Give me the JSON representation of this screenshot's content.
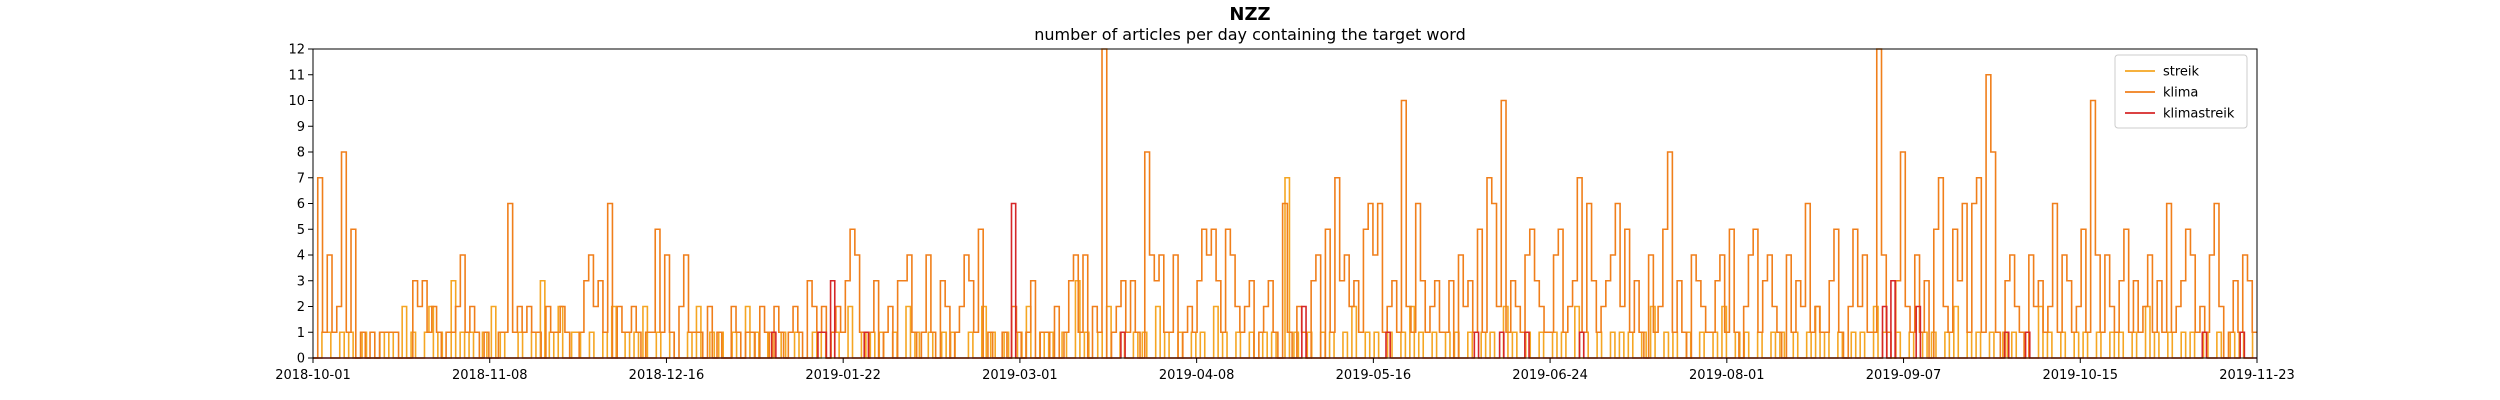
{
  "chart_data": {
    "type": "line",
    "title": "NZZ",
    "subtitle": "number of articles per day containing the target word",
    "xlabel": "",
    "ylabel": "",
    "x_range": [
      "2018-10-01",
      "2019-11-23"
    ],
    "ylim": [
      0,
      12
    ],
    "x_tick_labels": [
      "2018-10-01",
      "2018-11-08",
      "2018-12-16",
      "2019-01-22",
      "2019-03-01",
      "2019-04-08",
      "2019-05-16",
      "2019-06-24",
      "2019-08-01",
      "2019-09-07",
      "2019-10-15",
      "2019-11-23"
    ],
    "y_ticks": [
      "0",
      "1",
      "2",
      "3",
      "4",
      "5",
      "6",
      "7",
      "8",
      "9",
      "10",
      "11",
      "12"
    ],
    "grid": false,
    "legend_position": "top-right",
    "series": [
      {
        "name": "streik",
        "color": "#f5a623",
        "values": [
          0,
          0,
          1,
          1,
          0,
          0,
          1,
          0,
          1,
          0,
          0,
          1,
          0,
          0,
          0,
          1,
          0,
          1,
          0,
          0,
          2,
          0,
          1,
          0,
          0,
          1,
          2,
          0,
          1,
          0,
          0,
          3,
          0,
          1,
          0,
          1,
          0,
          0,
          1,
          0,
          2,
          0,
          1,
          0,
          0,
          0,
          1,
          0,
          0,
          1,
          0,
          3,
          0,
          1,
          0,
          2,
          0,
          0,
          1,
          1,
          0,
          0,
          1,
          0,
          0,
          1,
          0,
          2,
          0,
          0,
          1,
          0,
          1,
          0,
          2,
          0,
          0,
          1,
          0,
          0,
          1,
          0,
          0,
          0,
          1,
          0,
          2,
          0,
          0,
          1,
          0,
          1,
          0,
          0,
          1,
          0,
          0,
          2,
          0,
          1,
          0,
          0,
          1,
          0,
          0,
          1,
          0,
          0,
          1,
          0,
          0,
          0,
          1,
          0,
          1,
          0,
          0,
          1,
          0,
          0,
          2,
          0,
          0,
          1,
          0,
          1,
          0,
          1,
          0,
          0,
          1,
          0,
          0,
          2,
          0,
          1,
          0,
          0,
          1,
          0,
          0,
          1,
          0,
          1,
          0,
          0,
          0,
          1,
          0,
          0,
          2,
          0,
          1,
          0,
          0,
          1,
          0,
          0,
          1,
          0,
          2,
          0,
          0,
          1,
          0,
          1,
          0,
          0,
          1,
          0,
          0,
          3,
          0,
          1,
          0,
          0,
          1,
          0,
          2,
          0,
          0,
          1,
          0,
          0,
          1,
          0,
          1,
          0,
          0,
          2,
          0,
          1,
          0,
          0,
          1,
          0,
          0,
          1,
          0,
          1,
          0,
          0,
          2,
          0,
          1,
          0,
          0,
          1,
          0,
          0,
          1,
          0,
          0,
          1,
          0,
          1,
          0,
          0,
          7,
          0,
          1,
          0,
          0,
          1,
          0,
          0,
          1,
          0,
          1,
          0,
          0,
          1,
          0,
          2,
          0,
          0,
          1,
          0,
          1,
          0,
          0,
          1,
          0,
          0,
          1,
          0,
          2,
          0,
          1,
          0,
          0,
          1,
          0,
          0,
          1,
          0,
          1,
          0,
          0,
          1,
          0,
          0,
          1,
          0,
          1,
          0,
          0,
          2,
          0,
          1,
          0,
          0,
          1,
          0,
          0,
          1,
          0,
          0,
          1,
          0,
          1,
          0,
          0,
          2,
          0,
          1,
          0,
          0,
          1,
          0,
          0,
          1,
          0,
          1,
          0,
          1,
          0,
          0,
          1,
          0,
          2,
          0,
          0,
          1,
          0,
          1,
          0,
          0,
          1,
          0,
          0,
          1,
          0,
          0,
          1,
          0,
          2,
          0,
          0,
          1,
          0,
          1,
          0,
          0,
          1,
          0,
          0,
          1,
          0,
          1,
          0,
          0,
          1,
          0,
          0,
          1,
          0,
          2,
          0,
          1,
          0,
          0,
          1,
          0,
          0,
          1,
          0,
          1,
          0,
          0,
          2,
          0,
          1,
          0,
          0,
          1,
          0,
          0,
          1,
          0,
          0,
          1,
          0,
          1,
          0,
          0,
          1,
          0,
          2,
          0,
          0,
          1,
          0,
          1,
          0,
          0,
          1,
          0,
          0,
          1,
          0,
          1,
          0,
          0,
          1,
          0,
          0,
          2,
          0,
          1,
          0,
          0,
          1,
          0,
          0,
          1,
          0,
          1,
          0,
          0,
          1,
          0,
          0,
          1,
          0,
          1,
          0,
          0,
          1,
          0,
          0,
          2,
          0,
          1,
          0,
          0,
          1,
          0,
          0,
          1,
          0,
          1,
          0,
          0,
          1,
          0,
          0,
          1,
          0,
          0,
          1,
          0,
          1,
          0,
          0,
          1
        ]
      },
      {
        "name": "klima",
        "color": "#f07f1b",
        "values": [
          0,
          7,
          1,
          4,
          1,
          2,
          8,
          1,
          5,
          0,
          1,
          0,
          1,
          0,
          1,
          1,
          1,
          1,
          0,
          0,
          0,
          3,
          2,
          3,
          1,
          2,
          1,
          0,
          1,
          1,
          2,
          4,
          1,
          2,
          1,
          0,
          1,
          0,
          0,
          1,
          1,
          6,
          1,
          2,
          1,
          2,
          1,
          1,
          0,
          2,
          1,
          1,
          2,
          1,
          0,
          0,
          1,
          3,
          4,
          2,
          3,
          1,
          6,
          0,
          2,
          1,
          1,
          2,
          1,
          0,
          1,
          1,
          5,
          1,
          4,
          1,
          0,
          2,
          4,
          1,
          1,
          1,
          0,
          2,
          0,
          1,
          0,
          0,
          2,
          1,
          0,
          1,
          1,
          0,
          2,
          1,
          0,
          2,
          1,
          0,
          1,
          2,
          1,
          0,
          3,
          2,
          1,
          2,
          0,
          1,
          2,
          1,
          3,
          5,
          4,
          1,
          0,
          1,
          3,
          0,
          1,
          2,
          0,
          3,
          3,
          4,
          1,
          0,
          1,
          4,
          1,
          0,
          3,
          2,
          0,
          1,
          2,
          4,
          3,
          1,
          5,
          0,
          1,
          0,
          0,
          1,
          0,
          2,
          1,
          0,
          1,
          3,
          0,
          1,
          1,
          0,
          2,
          0,
          1,
          3,
          4,
          1,
          4,
          0,
          2,
          1,
          12,
          0,
          1,
          2,
          3,
          1,
          3,
          1,
          0,
          8,
          4,
          3,
          4,
          1,
          1,
          4,
          0,
          1,
          2,
          1,
          3,
          5,
          4,
          5,
          3,
          1,
          5,
          4,
          2,
          1,
          2,
          3,
          0,
          1,
          2,
          3,
          1,
          0,
          6,
          1,
          0,
          2,
          1,
          0,
          3,
          4,
          0,
          5,
          1,
          7,
          3,
          4,
          2,
          3,
          1,
          5,
          6,
          4,
          6,
          1,
          2,
          3,
          1,
          10,
          2,
          1,
          6,
          3,
          1,
          2,
          3,
          1,
          1,
          3,
          0,
          4,
          2,
          3,
          1,
          5,
          1,
          7,
          6,
          2,
          10,
          1,
          3,
          2,
          1,
          4,
          5,
          3,
          2,
          1,
          1,
          4,
          5,
          1,
          2,
          3,
          7,
          1,
          6,
          3,
          1,
          2,
          3,
          4,
          6,
          2,
          5,
          1,
          3,
          1,
          0,
          4,
          1,
          2,
          5,
          8,
          1,
          3,
          1,
          0,
          4,
          3,
          2,
          1,
          1,
          3,
          4,
          1,
          5,
          1,
          0,
          2,
          4,
          5,
          1,
          3,
          4,
          2,
          1,
          0,
          4,
          1,
          3,
          2,
          6,
          1,
          2,
          1,
          1,
          3,
          5,
          1,
          0,
          2,
          5,
          2,
          4,
          1,
          1,
          12,
          4,
          1,
          0,
          3,
          8,
          2,
          1,
          4,
          1,
          3,
          0,
          5,
          7,
          2,
          1,
          5,
          3,
          6,
          1,
          6,
          7,
          1,
          11,
          8,
          1,
          0,
          3,
          4,
          2,
          1,
          0,
          4,
          2,
          3,
          1,
          2,
          6,
          1,
          4,
          3,
          1,
          2,
          5,
          1,
          10,
          4,
          1,
          4,
          2,
          1,
          3,
          5,
          1,
          3,
          1,
          2,
          4,
          1,
          3,
          1,
          6,
          1,
          2,
          3,
          5,
          4,
          1,
          2,
          1,
          4,
          6,
          2,
          0,
          1,
          3,
          1,
          4,
          3,
          1
        ]
      },
      {
        "name": "klimastreik",
        "color": "#d62728",
        "values": [
          0,
          0,
          0,
          0,
          0,
          0,
          0,
          0,
          0,
          0,
          0,
          0,
          0,
          0,
          0,
          0,
          0,
          0,
          0,
          0,
          0,
          0,
          0,
          0,
          0,
          0,
          0,
          0,
          0,
          0,
          0,
          0,
          0,
          0,
          0,
          0,
          0,
          0,
          0,
          0,
          0,
          0,
          0,
          0,
          0,
          0,
          0,
          0,
          0,
          0,
          0,
          0,
          0,
          0,
          0,
          0,
          0,
          0,
          0,
          0,
          0,
          0,
          0,
          0,
          0,
          0,
          0,
          0,
          0,
          0,
          0,
          0,
          0,
          0,
          0,
          0,
          0,
          0,
          0,
          0,
          0,
          0,
          0,
          0,
          0,
          0,
          0,
          0,
          0,
          0,
          0,
          0,
          0,
          0,
          0,
          0,
          0,
          0,
          0,
          0,
          0,
          0,
          0,
          0,
          0,
          0,
          0,
          0,
          0,
          1,
          0,
          0,
          0,
          0,
          0,
          0,
          0,
          0,
          0,
          0,
          1,
          1,
          0,
          3,
          0,
          0,
          0,
          0,
          0,
          0,
          0,
          1,
          0,
          0,
          0,
          0,
          0,
          0,
          0,
          0,
          0,
          0,
          0,
          0,
          0,
          0,
          0,
          0,
          0,
          0,
          0,
          0,
          0,
          0,
          0,
          0,
          0,
          0,
          0,
          0,
          0,
          0,
          0,
          0,
          0,
          0,
          6,
          0,
          0,
          0,
          0,
          0,
          0,
          0,
          0,
          0,
          0,
          0,
          0,
          0,
          0,
          0,
          0,
          0,
          0,
          0,
          0,
          0,
          0,
          0,
          0,
          0,
          1,
          0,
          0,
          0,
          0,
          0,
          0,
          0,
          0,
          0,
          0,
          0,
          0,
          0,
          0,
          0,
          0,
          0,
          0,
          0,
          0,
          0,
          0,
          0,
          0,
          0,
          0,
          0,
          0,
          0,
          0,
          0,
          0,
          0,
          0,
          0,
          0,
          0,
          0,
          0,
          0,
          0,
          0,
          2,
          0,
          0,
          0,
          0,
          0,
          0,
          0,
          0,
          0,
          0,
          0,
          0,
          0,
          0,
          0,
          0,
          0,
          0,
          0,
          1,
          0,
          0,
          0,
          0,
          0,
          0,
          0,
          0,
          0,
          0,
          0,
          0,
          0,
          0,
          0,
          0,
          0,
          0,
          0,
          0,
          1,
          0,
          0,
          0,
          0,
          0,
          1,
          0,
          0,
          0,
          0,
          0,
          1,
          0,
          0,
          0,
          0,
          0,
          0,
          0,
          0,
          0,
          0,
          0,
          0,
          1,
          0,
          0,
          0,
          0,
          0,
          0,
          0,
          0,
          0,
          0,
          0,
          0,
          0,
          0,
          0,
          0,
          0,
          0,
          0,
          0,
          0,
          0,
          0,
          0,
          0,
          0,
          0,
          0,
          0,
          0,
          0,
          0,
          0,
          0,
          0,
          0,
          0,
          0,
          0,
          0,
          0,
          0,
          0,
          0,
          0,
          0,
          0,
          0,
          0,
          0,
          0,
          0,
          0,
          0,
          0,
          0,
          0,
          0,
          0,
          0,
          0,
          0,
          0,
          0,
          0,
          0,
          0,
          0,
          0,
          0,
          0,
          2,
          0,
          3,
          0,
          0,
          0,
          0,
          0,
          2,
          0,
          0,
          0,
          0,
          0,
          0,
          0,
          0,
          0,
          0,
          0,
          0,
          0,
          0,
          0,
          0,
          0,
          0,
          0,
          0,
          1,
          0,
          0,
          0,
          0,
          1,
          0,
          0,
          0,
          0,
          0,
          0,
          0,
          0,
          0,
          0,
          0,
          0,
          0,
          0,
          0,
          0,
          0,
          0,
          0,
          0,
          0,
          0,
          0,
          0,
          0,
          0,
          0,
          0,
          0,
          0,
          0,
          0,
          0,
          0,
          0,
          0,
          0,
          0,
          0,
          0,
          0,
          1,
          0,
          0,
          0,
          0,
          0,
          0,
          0,
          0,
          1,
          0,
          0,
          0
        ]
      }
    ]
  }
}
